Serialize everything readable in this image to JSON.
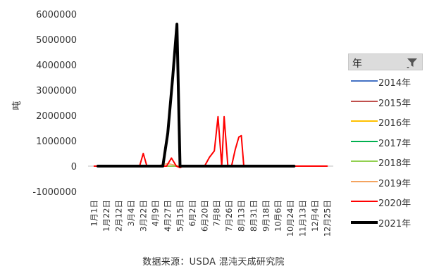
{
  "chart_data": {
    "type": "line",
    "ylabel": "吨",
    "ylim": [
      -1000000,
      6000000
    ],
    "yticks": [
      -1000000,
      0,
      1000000,
      2000000,
      3000000,
      4000000,
      5000000,
      6000000
    ],
    "categories": [
      "1月1日",
      "1月22日",
      "2月12日",
      "3月4日",
      "3月22日",
      "4月9日",
      "4月27日",
      "5月15日",
      "6月2日",
      "6月20日",
      "7月8日",
      "7月26日",
      "8月13日",
      "8月31日",
      "9月18日",
      "10月6日",
      "10月24日",
      "11月13日",
      "12月4日",
      "12月25日"
    ],
    "legend_title": "年",
    "legend_position": "right",
    "grid": false,
    "series": [
      {
        "name": "2014年",
        "color": "#4472c4",
        "width": 1.5,
        "values": [
          null,
          0,
          0,
          0,
          0,
          0,
          0,
          0,
          0,
          0,
          0,
          0,
          0,
          0,
          0,
          0,
          0,
          null,
          null,
          null
        ]
      },
      {
        "name": "2015年",
        "color": "#c0504d",
        "width": 1.5,
        "values": [
          null,
          0,
          0,
          0,
          0,
          0,
          0,
          0,
          0,
          0,
          0,
          0,
          0,
          0,
          0,
          0,
          0,
          null,
          null,
          null
        ]
      },
      {
        "name": "2016年",
        "color": "#ffc000",
        "width": 1.5,
        "values": [
          null,
          0,
          0,
          0,
          0,
          0,
          0,
          0,
          0,
          0,
          0,
          0,
          0,
          0,
          0,
          0,
          0,
          null,
          null,
          null
        ]
      },
      {
        "name": "2017年",
        "color": "#00b050",
        "width": 1.5,
        "values": [
          null,
          0,
          0,
          0,
          0,
          0,
          0,
          0,
          0,
          0,
          0,
          0,
          0,
          0,
          0,
          0,
          0,
          null,
          null,
          null
        ]
      },
      {
        "name": "2018年",
        "color": "#92d050",
        "width": 1.5,
        "values": [
          null,
          0,
          0,
          0,
          0,
          0,
          0,
          0,
          0,
          0,
          0,
          0,
          0,
          0,
          0,
          0,
          0,
          null,
          null,
          null
        ]
      },
      {
        "name": "2019年",
        "color": "#f4a460",
        "width": 1.5,
        "values": [
          null,
          0,
          0,
          0,
          0,
          0,
          100000,
          0,
          0,
          0,
          0,
          0,
          0,
          0,
          0,
          0,
          0,
          null,
          null,
          null
        ]
      },
      {
        "name": "2020年",
        "color": "#ff0000",
        "width": 2,
        "points": [
          [
            0,
            0
          ],
          [
            1,
            0
          ],
          [
            2,
            0
          ],
          [
            3,
            0
          ],
          [
            3.7,
            0
          ],
          [
            4.0,
            500000
          ],
          [
            4.3,
            0
          ],
          [
            5,
            0
          ],
          [
            5.9,
            0
          ],
          [
            6.3,
            320000
          ],
          [
            6.7,
            0
          ],
          [
            7.0,
            -60000
          ],
          [
            7.3,
            0
          ],
          [
            8,
            0
          ],
          [
            9,
            0
          ],
          [
            9.4,
            350000
          ],
          [
            9.8,
            600000
          ],
          [
            10.1,
            1950000
          ],
          [
            10.4,
            0
          ],
          [
            10.6,
            1950000
          ],
          [
            10.9,
            0
          ],
          [
            11.2,
            0
          ],
          [
            11.5,
            650000
          ],
          [
            11.8,
            1150000
          ],
          [
            12.0,
            1200000
          ],
          [
            12.2,
            0
          ],
          [
            13,
            0
          ],
          [
            14,
            0
          ],
          [
            15,
            0
          ],
          [
            16,
            0
          ],
          [
            17,
            0
          ],
          [
            18,
            0
          ],
          [
            19,
            0
          ]
        ]
      },
      {
        "name": "2021年",
        "color": "#000000",
        "width": 4,
        "points": [
          [
            0.3,
            0
          ],
          [
            1,
            0
          ],
          [
            2,
            0
          ],
          [
            3,
            0
          ],
          [
            4,
            0
          ],
          [
            5,
            0
          ],
          [
            5.6,
            0
          ],
          [
            6.0,
            1300000
          ],
          [
            6.4,
            3500000
          ],
          [
            6.75,
            5600000
          ],
          [
            7.0,
            0
          ],
          [
            8,
            0
          ],
          [
            9,
            0
          ],
          [
            10,
            0
          ],
          [
            11,
            0
          ],
          [
            12,
            0
          ],
          [
            13,
            0
          ],
          [
            14,
            0
          ],
          [
            15,
            0
          ],
          [
            16.3,
            0
          ]
        ]
      }
    ]
  },
  "source_note": "数据来源：USDA 混沌天成研究院"
}
